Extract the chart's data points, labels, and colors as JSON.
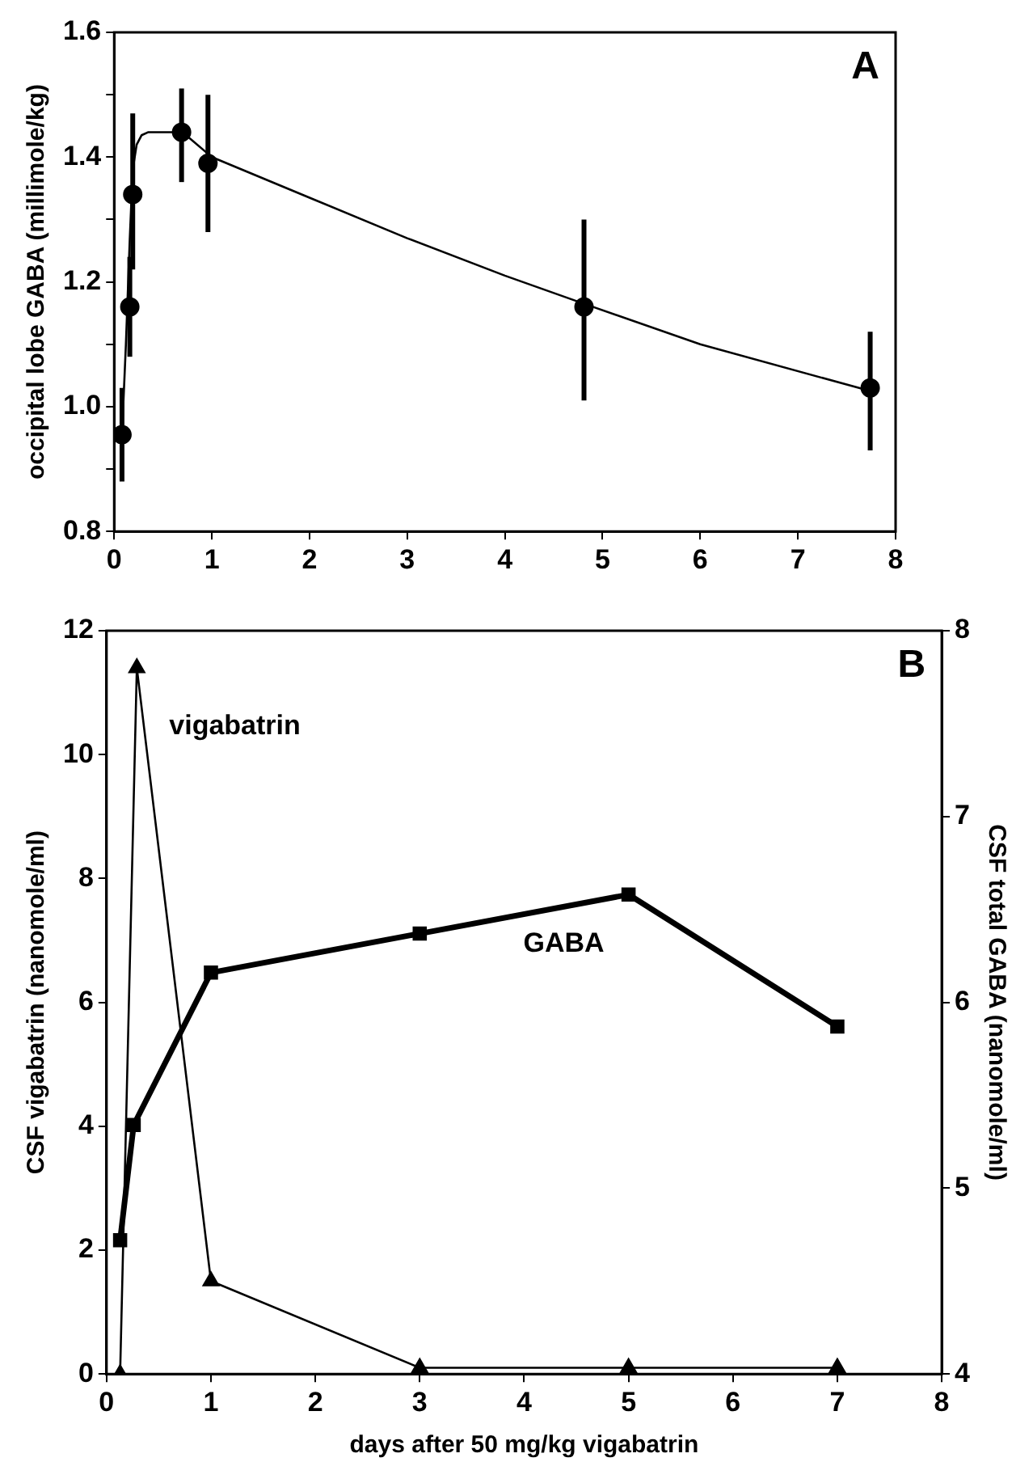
{
  "chart_data": [
    {
      "type": "scatter",
      "ylabel": "occipital lobe GABA (millimole/kg)",
      "annotations": [
        "A"
      ],
      "xlim": [
        0,
        8
      ],
      "xticks": [
        0,
        1,
        2,
        3,
        4,
        5,
        6,
        7,
        8
      ],
      "ylim": [
        0.8,
        1.6
      ],
      "yticks": [
        0.8,
        {
          "value": 0.9,
          "label": null
        },
        {
          "value": 1,
          "label": "1.0"
        },
        {
          "value": 1.1,
          "label": null
        },
        1.2,
        {
          "value": 1.3,
          "label": null
        },
        1.4,
        {
          "value": 1.5,
          "label": null
        },
        1.6
      ],
      "legend": false,
      "marker": "circle",
      "series": [
        {
          "color": "#000000",
          "x": [
            0.08,
            0.16,
            0.19,
            0.69,
            0.96,
            4.81,
            7.74
          ],
          "values": [
            0.955,
            1.16,
            1.34,
            1.44,
            1.39,
            1.16,
            1.03
          ],
          "errors": [
            [
              0.88,
              1.03
            ],
            [
              1.08,
              1.24
            ],
            [
              1.22,
              1.47
            ],
            [
              1.36,
              1.51
            ],
            [
              1.28,
              1.5
            ],
            [
              1.01,
              1.3
            ],
            [
              0.93,
              1.12
            ]
          ]
        },
        {
          "type": "line",
          "marker": "none",
          "color": "#000000",
          "x": [
            0.08,
            0.12,
            0.16,
            0.19,
            0.23,
            0.28,
            0.35,
            0.7,
            1,
            2,
            3,
            4,
            4.81,
            6,
            7.74
          ],
          "values": [
            0.955,
            1.1,
            1.27,
            1.38,
            1.42,
            1.435,
            1.44,
            1.44,
            1.4,
            1.335,
            1.27,
            1.21,
            1.165,
            1.1,
            1.025
          ]
        }
      ]
    },
    {
      "type": "line",
      "xlabel": "days after 50 mg/kg vigabatrin",
      "ylabel": "CSF vigabatrin (nanomole/ml)",
      "y2label": "CSF total GABA (nanomole/ml)",
      "annotations": [
        "B"
      ],
      "xlim": [
        0,
        8
      ],
      "xticks": [
        0,
        1,
        2,
        3,
        4,
        5,
        6,
        7,
        8
      ],
      "ylim": [
        0,
        12
      ],
      "yticks": [
        0,
        2,
        4,
        6,
        8,
        10,
        12
      ],
      "y2lim": [
        4,
        8
      ],
      "y2ticks": [
        4,
        5,
        6,
        7,
        8
      ],
      "legend": false,
      "series": [
        {
          "name": "vigabatrin",
          "color": "#000000",
          "marker": "triangle",
          "x": [
            0.13,
            0.29,
            1,
            3,
            5,
            7
          ],
          "values": [
            0,
            11.4,
            1.5,
            0.1,
            0.1,
            0.1
          ]
        },
        {
          "name": "GABA",
          "color": "#000000",
          "marker": "square",
          "axis": "y2",
          "x": [
            0.13,
            0.26,
            1,
            3,
            5,
            7
          ],
          "values": [
            4.72,
            5.34,
            6.16,
            6.37,
            6.58,
            5.87
          ]
        }
      ]
    }
  ]
}
